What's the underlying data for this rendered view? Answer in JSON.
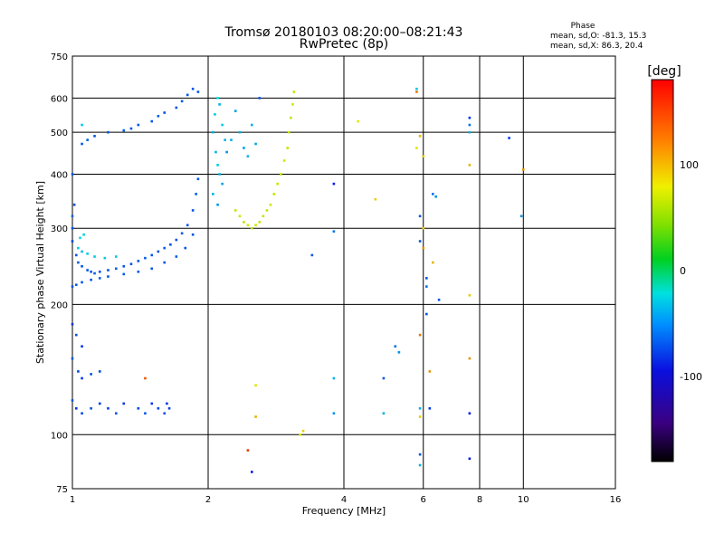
{
  "chart_data": {
    "type": "scatter",
    "title": "Tromsø 20180103 08:20:00–08:21:43",
    "subtitle": "RwPretec (8p)",
    "xlabel": "Frequency [MHz]",
    "ylabel": "Stationary phase Virtual Height [km]",
    "x_scale": "log",
    "y_scale": "log",
    "xlim": [
      1,
      16
    ],
    "ylim": [
      75,
      750
    ],
    "x_ticks": [
      1,
      2,
      4,
      6,
      8,
      10,
      16
    ],
    "x_tick_labels": [
      "1",
      "2",
      "4",
      "6",
      "8",
      "10",
      "16"
    ],
    "y_ticks": [
      75,
      100,
      200,
      300,
      400,
      500,
      600,
      750
    ],
    "y_tick_labels": [
      "75",
      "100",
      "200",
      "300",
      "400",
      "500",
      "600",
      "750"
    ],
    "grid": true,
    "stats": {
      "title": "Phase",
      "line_o": "mean, sd,O: -81.3, 15.3",
      "line_x": "mean, sd,X:  86.3, 20.4"
    },
    "colorbar": {
      "label": "[deg]",
      "range": [
        -180,
        180
      ],
      "ticks": [
        100,
        0,
        -100
      ],
      "tick_labels": [
        "100",
        "0",
        "-100"
      ]
    },
    "series": [
      {
        "points": [
          [
            1.0,
            300,
            -100
          ],
          [
            1.0,
            320,
            -95
          ],
          [
            1.01,
            340,
            -100
          ],
          [
            1.0,
            280,
            -105
          ],
          [
            1.02,
            260,
            -100
          ],
          [
            1.03,
            250,
            -98
          ],
          [
            1.05,
            245,
            -100
          ],
          [
            1.08,
            240,
            -102
          ],
          [
            1.1,
            238,
            -100
          ],
          [
            1.12,
            236,
            -98
          ],
          [
            1.15,
            238,
            -100
          ],
          [
            1.2,
            240,
            -100
          ],
          [
            1.25,
            242,
            -98
          ],
          [
            1.3,
            245,
            -100
          ],
          [
            1.35,
            248,
            -102
          ],
          [
            1.4,
            252,
            -100
          ],
          [
            1.45,
            256,
            -98
          ],
          [
            1.5,
            260,
            -100
          ],
          [
            1.55,
            265,
            -100
          ],
          [
            1.6,
            270,
            -98
          ],
          [
            1.65,
            275,
            -100
          ],
          [
            1.7,
            282,
            -100
          ],
          [
            1.75,
            292,
            -98
          ],
          [
            1.8,
            305,
            -100
          ],
          [
            1.85,
            330,
            -100
          ],
          [
            1.88,
            360,
            -98
          ],
          [
            1.9,
            390,
            -100
          ],
          [
            1.0,
            220,
            -100
          ],
          [
            1.02,
            222,
            -98
          ],
          [
            1.05,
            225,
            -100
          ],
          [
            1.1,
            228,
            -100
          ],
          [
            1.15,
            230,
            -98
          ],
          [
            1.2,
            232,
            -100
          ],
          [
            1.3,
            235,
            -100
          ],
          [
            1.4,
            238,
            -98
          ],
          [
            1.5,
            242,
            -100
          ],
          [
            1.6,
            250,
            -100
          ],
          [
            1.7,
            258,
            -98
          ],
          [
            1.78,
            270,
            -100
          ],
          [
            1.85,
            290,
            -100
          ],
          [
            1.03,
            270,
            -60
          ],
          [
            1.05,
            265,
            -65
          ],
          [
            1.08,
            262,
            -60
          ],
          [
            1.12,
            258,
            -62
          ],
          [
            1.18,
            256,
            -60
          ],
          [
            1.25,
            258,
            -62
          ],
          [
            1.04,
            285,
            -55
          ],
          [
            1.06,
            290,
            -58
          ],
          [
            1.0,
            400,
            -100
          ],
          [
            1.05,
            470,
            -100
          ],
          [
            1.08,
            480,
            -98
          ],
          [
            1.12,
            490,
            -100
          ],
          [
            1.2,
            500,
            -100
          ],
          [
            1.3,
            505,
            -98
          ],
          [
            1.35,
            510,
            -100
          ],
          [
            1.4,
            520,
            -100
          ],
          [
            1.5,
            530,
            -100
          ],
          [
            1.55,
            545,
            -98
          ],
          [
            1.6,
            555,
            -100
          ],
          [
            1.7,
            570,
            -100
          ],
          [
            1.75,
            590,
            -98
          ],
          [
            1.8,
            610,
            -100
          ],
          [
            1.85,
            630,
            -100
          ],
          [
            1.9,
            620,
            -100
          ],
          [
            1.05,
            520,
            -60
          ],
          [
            2.05,
            500,
            -70
          ],
          [
            2.07,
            550,
            -60
          ],
          [
            2.1,
            600,
            -50
          ],
          [
            2.12,
            580,
            -70
          ],
          [
            2.15,
            520,
            -60
          ],
          [
            2.18,
            480,
            -70
          ],
          [
            2.2,
            450,
            -80
          ],
          [
            2.08,
            450,
            -70
          ],
          [
            2.1,
            420,
            -60
          ],
          [
            2.12,
            400,
            -70
          ],
          [
            2.15,
            380,
            -75
          ],
          [
            2.05,
            360,
            -70
          ],
          [
            2.1,
            340,
            -80
          ],
          [
            2.25,
            480,
            -70
          ],
          [
            2.3,
            560,
            -75
          ],
          [
            2.35,
            500,
            -70
          ],
          [
            2.4,
            460,
            -75
          ],
          [
            2.45,
            440,
            -70
          ],
          [
            2.5,
            520,
            -70
          ],
          [
            2.55,
            470,
            -72
          ],
          [
            2.6,
            600,
            -100
          ],
          [
            2.3,
            330,
            90
          ],
          [
            2.35,
            320,
            95
          ],
          [
            2.4,
            310,
            90
          ],
          [
            2.45,
            305,
            92
          ],
          [
            2.5,
            300,
            90
          ],
          [
            2.55,
            305,
            95
          ],
          [
            2.6,
            310,
            90
          ],
          [
            2.65,
            320,
            92
          ],
          [
            2.7,
            330,
            90
          ],
          [
            2.75,
            340,
            95
          ],
          [
            2.8,
            360,
            90
          ],
          [
            2.85,
            380,
            92
          ],
          [
            2.9,
            400,
            90
          ],
          [
            2.95,
            430,
            95
          ],
          [
            3.0,
            460,
            90
          ],
          [
            3.02,
            500,
            92
          ],
          [
            3.05,
            540,
            90
          ],
          [
            3.08,
            580,
            95
          ],
          [
            3.1,
            620,
            90
          ],
          [
            1.0,
            180,
            -110
          ],
          [
            1.02,
            170,
            -100
          ],
          [
            1.05,
            160,
            -110
          ],
          [
            1.0,
            150,
            -100
          ],
          [
            1.03,
            140,
            -105
          ],
          [
            1.05,
            135,
            -110
          ],
          [
            1.1,
            138,
            -100
          ],
          [
            1.15,
            140,
            -105
          ],
          [
            1.0,
            120,
            -100
          ],
          [
            1.02,
            115,
            -110
          ],
          [
            1.05,
            112,
            -105
          ],
          [
            1.1,
            115,
            -100
          ],
          [
            1.15,
            118,
            -110
          ],
          [
            1.2,
            115,
            -105
          ],
          [
            1.25,
            112,
            -100
          ],
          [
            1.3,
            118,
            -110
          ],
          [
            1.4,
            115,
            -105
          ],
          [
            1.45,
            112,
            -100
          ],
          [
            1.5,
            118,
            -110
          ],
          [
            1.55,
            115,
            -105
          ],
          [
            1.6,
            112,
            -100
          ],
          [
            1.62,
            118,
            -110
          ],
          [
            1.64,
            115,
            -105
          ],
          [
            1.45,
            135,
            150
          ],
          [
            2.45,
            92,
            160
          ],
          [
            2.5,
            82,
            -120
          ],
          [
            2.55,
            110,
            120
          ],
          [
            2.55,
            130,
            100
          ],
          [
            3.2,
            100,
            100
          ],
          [
            3.25,
            102,
            110
          ],
          [
            3.4,
            260,
            -100
          ],
          [
            3.8,
            380,
            -120
          ],
          [
            3.8,
            295,
            -90
          ],
          [
            3.8,
            135,
            -70
          ],
          [
            3.8,
            112,
            -80
          ],
          [
            4.3,
            530,
            100
          ],
          [
            4.7,
            350,
            110
          ],
          [
            4.9,
            135,
            -100
          ],
          [
            4.9,
            112,
            -70
          ],
          [
            5.2,
            160,
            -90
          ],
          [
            5.3,
            155,
            -80
          ],
          [
            5.8,
            460,
            100
          ],
          [
            5.8,
            630,
            -60
          ],
          [
            5.8,
            620,
            140
          ],
          [
            5.9,
            490,
            120
          ],
          [
            5.9,
            320,
            -100
          ],
          [
            5.9,
            280,
            -100
          ],
          [
            5.9,
            170,
            140
          ],
          [
            5.9,
            115,
            -70
          ],
          [
            5.9,
            110,
            110
          ],
          [
            5.9,
            90,
            -100
          ],
          [
            5.9,
            85,
            -70
          ],
          [
            6.0,
            440,
            110
          ],
          [
            6.0,
            300,
            110
          ],
          [
            6.0,
            270,
            130
          ],
          [
            6.1,
            230,
            -100
          ],
          [
            6.1,
            220,
            -90
          ],
          [
            6.1,
            190,
            -100
          ],
          [
            6.2,
            140,
            130
          ],
          [
            6.2,
            115,
            -110
          ],
          [
            6.3,
            250,
            120
          ],
          [
            6.3,
            360,
            -90
          ],
          [
            6.4,
            355,
            -80
          ],
          [
            6.5,
            205,
            -100
          ],
          [
            7.6,
            540,
            -110
          ],
          [
            7.6,
            520,
            -90
          ],
          [
            7.6,
            500,
            -70
          ],
          [
            7.6,
            420,
            120
          ],
          [
            7.6,
            210,
            110
          ],
          [
            7.6,
            150,
            130
          ],
          [
            7.6,
            112,
            -120
          ],
          [
            7.6,
            88,
            -120
          ],
          [
            9.3,
            485,
            -110
          ],
          [
            9.9,
            320,
            -80
          ],
          [
            10.0,
            410,
            130
          ]
        ]
      }
    ]
  }
}
